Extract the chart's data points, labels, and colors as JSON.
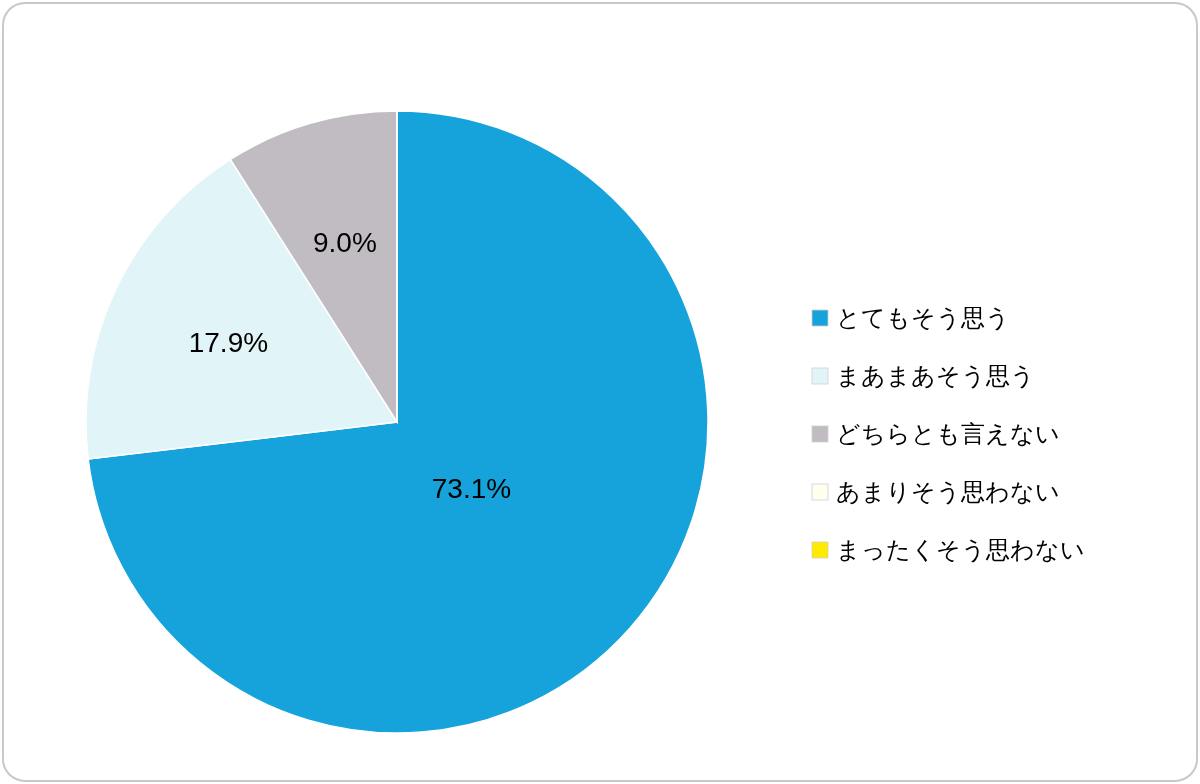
{
  "chart_data": {
    "type": "pie",
    "categories": [
      "とてもそう思う",
      "まあまあそう思う",
      "どちらとも言えない",
      "あまりそう思わない",
      "まったくそう思わない"
    ],
    "values": [
      73.1,
      17.9,
      9.0,
      0,
      0
    ],
    "colors": [
      "#16a3db",
      "#e1f4f8",
      "#c0bcc2",
      "#fffff0",
      "#ffeb00"
    ],
    "value_labels": [
      "73.1%",
      "17.9%",
      "9.0%",
      null,
      null
    ],
    "legend": "right"
  }
}
